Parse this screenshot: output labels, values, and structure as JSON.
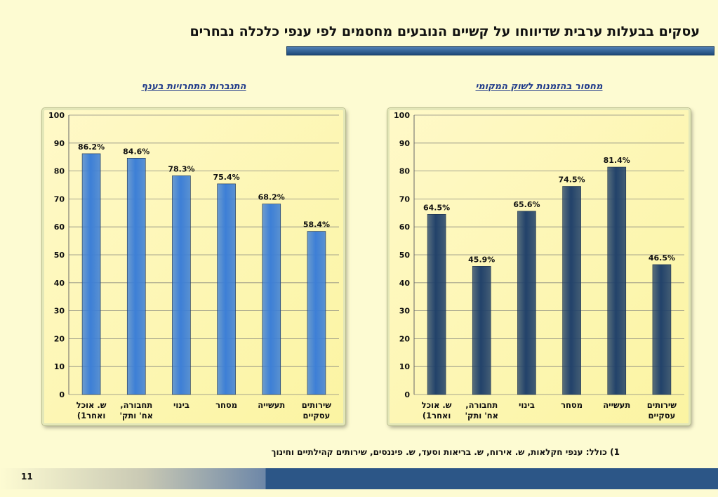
{
  "slide": {
    "title": "עסקים בבעלות ערבית שדיווחו על קשיים הנובעים מחסמים לפי ענפי כלכלה נבחרים",
    "footnote": "1) כולל: ענפי חקלאות, ש. אירוח, ש. בריאות וסעד, ש. פיננסים, שירותים קהילתיים וחינוך",
    "page_number": "11"
  },
  "colors": {
    "left_bar": "#3d7fd6",
    "right_bar": "#22426a",
    "background": "#fdfbd2"
  },
  "chart_data": [
    {
      "type": "bar",
      "title": "התגברות התחרויות בענף",
      "categories": [
        [
          "ש. אוכל",
          "ואחר1)"
        ],
        [
          "תחבורה,",
          "אח' ותק'"
        ],
        [
          "בינוי"
        ],
        [
          "מסחר"
        ],
        [
          "תעשייה"
        ],
        [
          "שירותים",
          "עסקיים"
        ]
      ],
      "values": [
        86.2,
        84.6,
        78.3,
        75.4,
        68.2,
        58.4
      ],
      "data_labels": [
        "86.2%",
        "84.6%",
        "78.3%",
        "75.4%",
        "68.2%",
        "58.4%"
      ],
      "ylim": [
        0,
        100
      ],
      "yticks": [
        0,
        10,
        20,
        30,
        40,
        50,
        60,
        70,
        80,
        90,
        100
      ],
      "grid": true,
      "xlabel": "",
      "ylabel": ""
    },
    {
      "type": "bar",
      "title": "מחסור בהזמנות לשוק המקומי",
      "categories": [
        [
          "ש. אוכל",
          "ואחר1)"
        ],
        [
          "תחבורה,",
          "אח' ותק'"
        ],
        [
          "בינוי"
        ],
        [
          "מסחר"
        ],
        [
          "תעשייה"
        ],
        [
          "שירותים",
          "עסקיים"
        ]
      ],
      "values": [
        64.5,
        45.9,
        65.6,
        74.5,
        81.4,
        46.5
      ],
      "data_labels": [
        "64.5%",
        "45.9%",
        "65.6%",
        "74.5%",
        "81.4%",
        "46.5%"
      ],
      "ylim": [
        0,
        100
      ],
      "yticks": [
        0,
        10,
        20,
        30,
        40,
        50,
        60,
        70,
        80,
        90,
        100
      ],
      "grid": true,
      "xlabel": "",
      "ylabel": ""
    }
  ]
}
